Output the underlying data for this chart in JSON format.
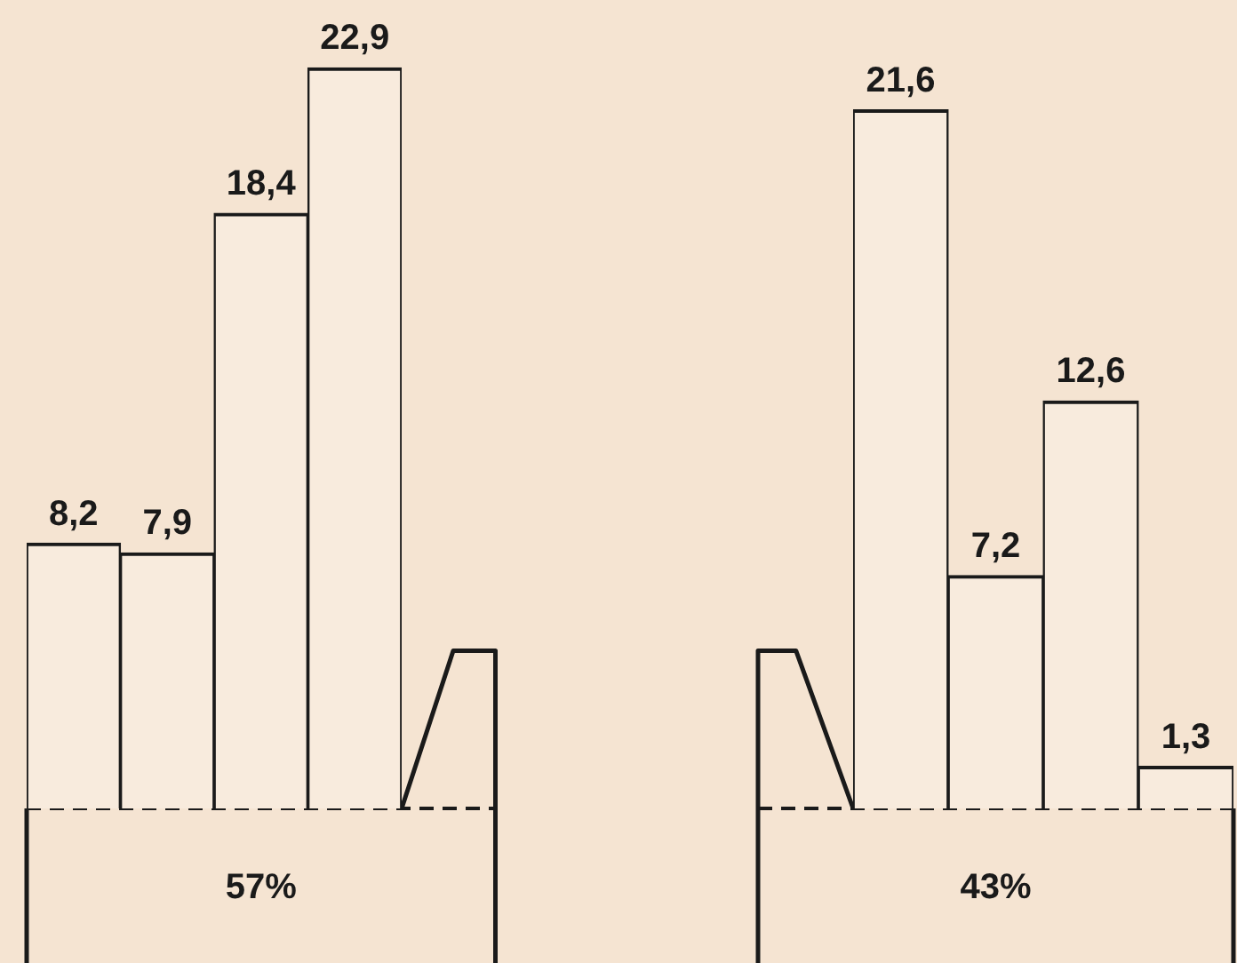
{
  "chart_data": [
    {
      "type": "bar",
      "categories": [
        null,
        null,
        null,
        null
      ],
      "series": [
        {
          "color": "#f8ebdd",
          "values": [
            8.2,
            7.9,
            18.4,
            22.9
          ],
          "value_labels": [
            "8,2",
            "7,9",
            "18,4",
            "22,9"
          ]
        }
      ],
      "annotations": [
        "57%"
      ]
    },
    {
      "type": "bar",
      "categories": [
        null,
        null,
        null,
        null
      ],
      "series": [
        {
          "color": "#f8ebdd",
          "values": [
            21.6,
            7.2,
            12.6,
            1.3
          ],
          "value_labels": [
            "21,6",
            "7,2",
            "12,6",
            "1,3"
          ]
        }
      ],
      "annotations": [
        "43%"
      ]
    }
  ]
}
